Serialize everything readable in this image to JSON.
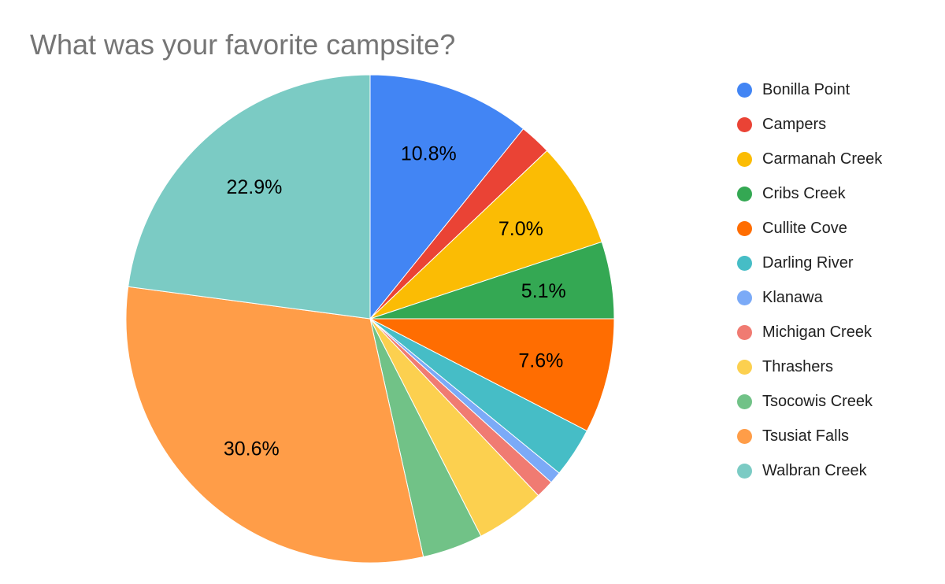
{
  "chart_data": {
    "type": "pie",
    "title": "What was your favorite campsite?",
    "legend_position": "right",
    "start_angle_deg": 0,
    "direction": "clockwise",
    "label_threshold_pct": 5,
    "slices": [
      {
        "label": "Bonilla Point",
        "value": 10.8,
        "display_pct": "10.8%",
        "color": "#4285F4"
      },
      {
        "label": "Campers",
        "value": 2.1,
        "display_pct": "",
        "color": "#EA4335"
      },
      {
        "label": "Carmanah Creek",
        "value": 7.0,
        "display_pct": "7.0%",
        "color": "#FBBC04"
      },
      {
        "label": "Cribs Creek",
        "value": 5.1,
        "display_pct": "5.1%",
        "color": "#34A853"
      },
      {
        "label": "Cullite Cove",
        "value": 7.6,
        "display_pct": "7.6%",
        "color": "#FF6D01"
      },
      {
        "label": "Darling River",
        "value": 3.3,
        "display_pct": "",
        "color": "#46BDC6"
      },
      {
        "label": "Klanawa",
        "value": 0.8,
        "display_pct": "",
        "color": "#7BAAF7"
      },
      {
        "label": "Michigan Creek",
        "value": 1.2,
        "display_pct": "",
        "color": "#F07B72"
      },
      {
        "label": "Thrashers",
        "value": 4.6,
        "display_pct": "",
        "color": "#FCD04F"
      },
      {
        "label": "Tsocowis Creek",
        "value": 4.0,
        "display_pct": "",
        "color": "#71C287"
      },
      {
        "label": "Tsusiat Falls",
        "value": 30.6,
        "display_pct": "30.6%",
        "color": "#FF9D48"
      },
      {
        "label": "Walbran Creek",
        "value": 22.9,
        "display_pct": "22.9%",
        "color": "#7BCBC4"
      }
    ]
  },
  "style": {
    "background": "#FFFFFF",
    "title_color": "#757575",
    "slice_label_color": "#000000",
    "legend_text_color": "#212121",
    "slice_border_color": "#FFFFFF"
  }
}
